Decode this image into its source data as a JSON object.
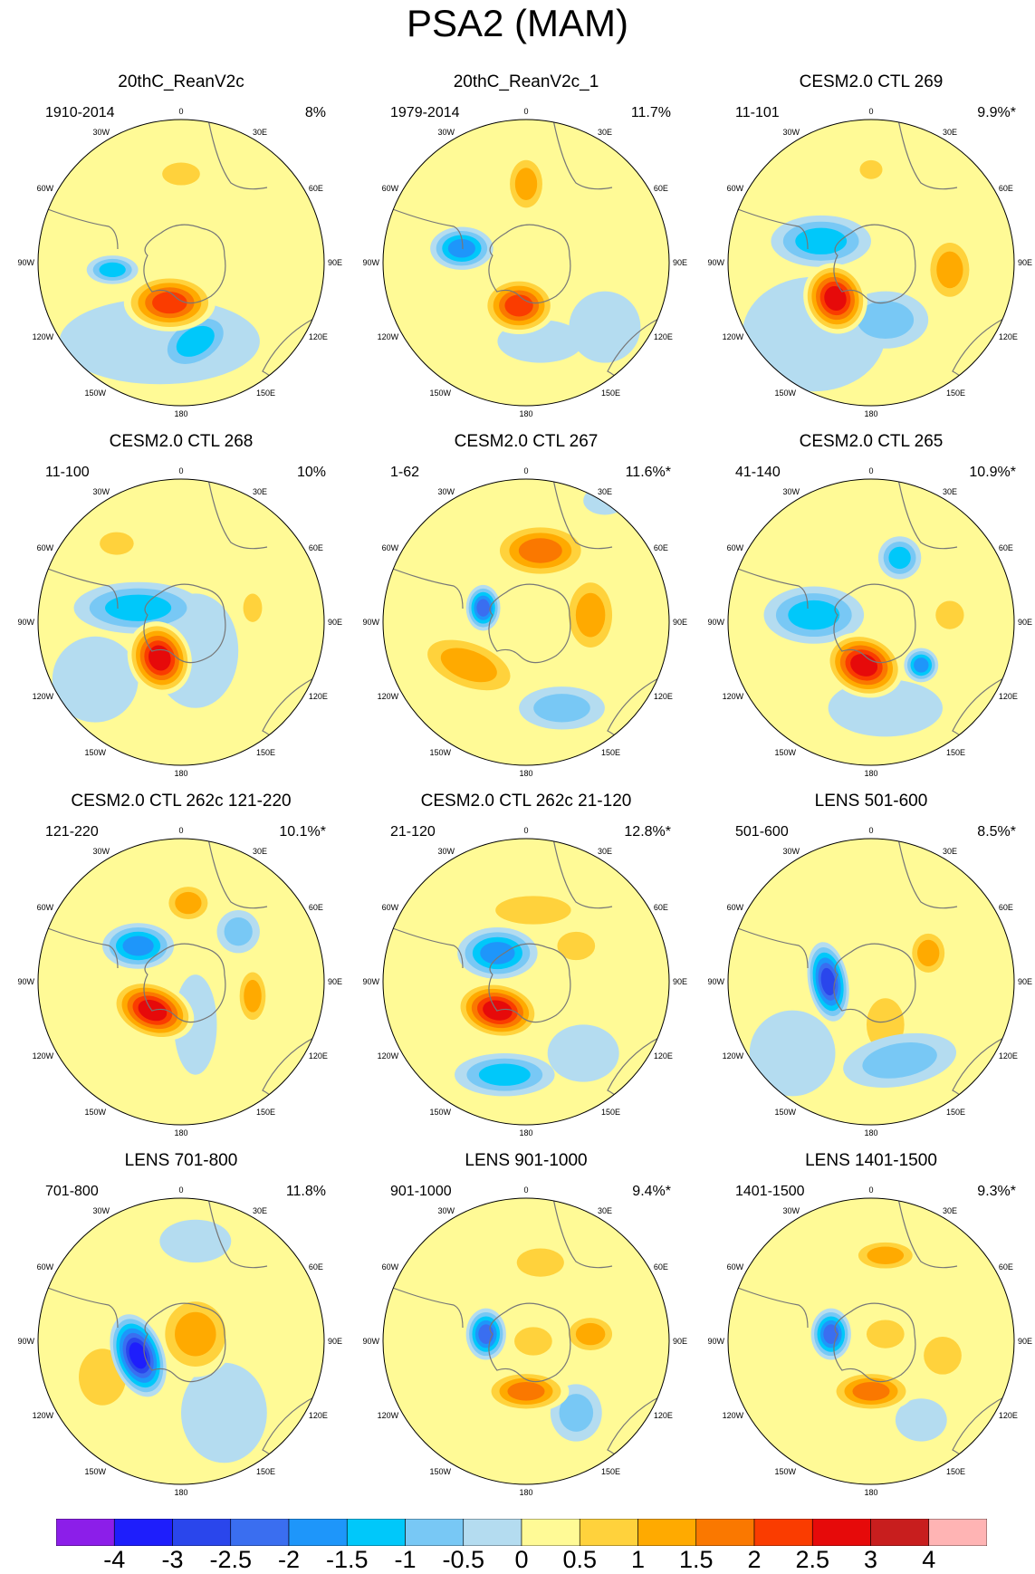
{
  "title": "PSA2 (MAM)",
  "map_labels": {
    "top": "0",
    "bottom": "180",
    "left": "90W",
    "right": "90E",
    "r30e": "30E",
    "r60e": "60E",
    "r120e": "120E",
    "r150e": "150E",
    "l30w": "30W",
    "l60w": "60W",
    "l120w": "120W",
    "l150w": "150W"
  },
  "panels": [
    {
      "title": "20thC_ReanV2c",
      "period": "1910-2014",
      "variance": "8%",
      "blobs": [
        [
          -0.08,
          0.28,
          0.32,
          0.2,
          0,
          2.5
        ],
        [
          0.0,
          -0.62,
          0.2,
          0.12,
          0,
          1
        ],
        [
          -0.48,
          0.05,
          0.18,
          0.1,
          0,
          -1.5
        ],
        [
          0.38,
          0.1,
          0.08,
          0.13,
          0,
          0.5
        ],
        [
          0.1,
          0.55,
          0.28,
          0.18,
          -30,
          -1.5
        ],
        [
          -0.15,
          0.55,
          0.7,
          0.3,
          0,
          -0.5
        ]
      ]
    },
    {
      "title": "20thC_ReanV2c_1",
      "period": "1979-2014",
      "variance": "11.7%",
      "blobs": [
        [
          -0.05,
          0.3,
          0.26,
          0.2,
          0,
          2.5
        ],
        [
          -0.45,
          -0.1,
          0.22,
          0.15,
          0,
          -2
        ],
        [
          0.0,
          -0.55,
          0.15,
          0.22,
          0,
          1.5
        ],
        [
          0.1,
          0.55,
          0.3,
          0.15,
          0,
          -0.5
        ],
        [
          0.55,
          0.45,
          0.25,
          0.25,
          0,
          -0.5
        ],
        [
          0.2,
          0.0,
          0.25,
          0.2,
          0,
          0.5
        ]
      ]
    },
    {
      "title": "CESM2.0 CTL 269",
      "period": "11-101",
      "variance": "9.9%*",
      "blobs": [
        [
          -0.25,
          0.25,
          0.22,
          0.25,
          -20,
          3
        ],
        [
          0.55,
          0.05,
          0.18,
          0.25,
          0,
          1.5
        ],
        [
          0.0,
          -0.65,
          0.12,
          0.1,
          0,
          1
        ],
        [
          -0.35,
          -0.15,
          0.35,
          0.18,
          0,
          -1.5
        ],
        [
          0.1,
          0.4,
          0.3,
          0.2,
          0,
          -1
        ],
        [
          -0.4,
          0.5,
          0.5,
          0.4,
          0,
          -0.5
        ]
      ]
    },
    {
      "title": "CESM2.0 CTL 268",
      "period": "11-100",
      "variance": "10%",
      "blobs": [
        [
          -0.15,
          0.25,
          0.22,
          0.26,
          -20,
          3
        ],
        [
          -0.3,
          -0.1,
          0.45,
          0.18,
          0,
          -1.5
        ],
        [
          -0.45,
          -0.55,
          0.18,
          0.12,
          0,
          1
        ],
        [
          0.5,
          -0.1,
          0.1,
          0.15,
          0,
          1
        ],
        [
          0.1,
          0.2,
          0.3,
          0.4,
          0,
          -0.5
        ],
        [
          -0.6,
          0.4,
          0.3,
          0.3,
          0,
          -0.5
        ]
      ]
    },
    {
      "title": "CESM2.0 CTL 267",
      "period": "1-62",
      "variance": "11.6%*",
      "blobs": [
        [
          -0.3,
          -0.1,
          0.12,
          0.16,
          0,
          -2.5
        ],
        [
          0.1,
          -0.5,
          0.35,
          0.2,
          0,
          2
        ],
        [
          0.45,
          -0.05,
          0.2,
          0.3,
          0,
          1.5
        ],
        [
          -0.4,
          0.3,
          0.4,
          0.2,
          20,
          1.5
        ],
        [
          0.25,
          0.6,
          0.3,
          0.15,
          0,
          -1
        ],
        [
          0.55,
          -0.85,
          0.15,
          0.1,
          0,
          -0.5
        ]
      ]
    },
    {
      "title": "CESM2.0 CTL 265",
      "period": "41-140",
      "variance": "10.9%*",
      "blobs": [
        [
          -0.05,
          0.3,
          0.28,
          0.22,
          20,
          3
        ],
        [
          -0.4,
          -0.05,
          0.35,
          0.2,
          0,
          -1.5
        ],
        [
          0.2,
          -0.45,
          0.15,
          0.15,
          0,
          -1.5
        ],
        [
          0.35,
          0.3,
          0.12,
          0.12,
          0,
          -2
        ],
        [
          0.55,
          -0.05,
          0.15,
          0.15,
          0,
          1
        ],
        [
          -0.3,
          -0.6,
          0.15,
          0.1,
          0,
          0.5
        ],
        [
          0.1,
          0.6,
          0.4,
          0.2,
          0,
          -0.5
        ]
      ]
    },
    {
      "title": "CESM2.0 CTL 262c 121-220",
      "period": "121-220",
      "variance": "10.1%*",
      "blobs": [
        [
          -0.2,
          0.2,
          0.3,
          0.2,
          20,
          3
        ],
        [
          -0.3,
          -0.25,
          0.25,
          0.16,
          0,
          -2
        ],
        [
          0.05,
          -0.55,
          0.18,
          0.15,
          0,
          1.5
        ],
        [
          0.5,
          0.1,
          0.12,
          0.22,
          0,
          1.5
        ],
        [
          0.1,
          0.3,
          0.15,
          0.35,
          0,
          -0.5
        ],
        [
          0.4,
          -0.35,
          0.15,
          0.15,
          0,
          -1
        ]
      ]
    },
    {
      "title": "CESM2.0 CTL 262c 21-120",
      "period": "21-120",
      "variance": "12.8%*",
      "blobs": [
        [
          -0.2,
          0.2,
          0.3,
          0.2,
          10,
          3
        ],
        [
          -0.2,
          -0.2,
          0.28,
          0.18,
          0,
          -2
        ],
        [
          -0.15,
          0.65,
          0.35,
          0.15,
          0,
          -1.5
        ],
        [
          0.05,
          -0.5,
          0.4,
          0.15,
          0,
          1
        ],
        [
          0.35,
          -0.25,
          0.2,
          0.15,
          0,
          1
        ],
        [
          0.4,
          0.5,
          0.25,
          0.2,
          0,
          -0.5
        ]
      ]
    },
    {
      "title": "LENS 501-600",
      "period": "501-600",
      "variance": "8.5%*",
      "blobs": [
        [
          -0.3,
          0.0,
          0.14,
          0.28,
          -10,
          -3
        ],
        [
          0.1,
          0.3,
          0.2,
          0.28,
          0,
          1
        ],
        [
          0.4,
          -0.2,
          0.15,
          0.18,
          0,
          1.5
        ],
        [
          0.2,
          0.55,
          0.4,
          0.18,
          -10,
          -1
        ],
        [
          0.4,
          0.0,
          0.2,
          0.2,
          0,
          0.5
        ],
        [
          -0.55,
          0.5,
          0.3,
          0.3,
          0,
          -0.5
        ]
      ]
    },
    {
      "title": "LENS 701-800",
      "period": "701-800",
      "variance": "11.8%",
      "blobs": [
        [
          -0.3,
          0.1,
          0.18,
          0.3,
          -20,
          -3.5
        ],
        [
          0.1,
          -0.05,
          0.28,
          0.3,
          0,
          1.5
        ],
        [
          -0.55,
          0.25,
          0.25,
          0.3,
          0,
          1
        ],
        [
          0.3,
          0.5,
          0.3,
          0.35,
          0,
          -0.5
        ],
        [
          0.1,
          -0.7,
          0.25,
          0.15,
          0,
          -0.5
        ]
      ]
    },
    {
      "title": "LENS 901-1000",
      "period": "901-1000",
      "variance": "9.4%*",
      "blobs": [
        [
          -0.28,
          -0.05,
          0.14,
          0.18,
          0,
          -2.5
        ],
        [
          0.0,
          0.35,
          0.3,
          0.15,
          0,
          2
        ],
        [
          0.1,
          -0.55,
          0.25,
          0.15,
          0,
          1
        ],
        [
          0.45,
          -0.05,
          0.2,
          0.15,
          0,
          1.5
        ],
        [
          0.35,
          0.5,
          0.18,
          0.2,
          0,
          -1
        ],
        [
          0.05,
          0.0,
          0.2,
          0.15,
          0,
          1
        ]
      ]
    },
    {
      "title": "LENS 1401-1500",
      "period": "1401-1500",
      "variance": "9.3%*",
      "blobs": [
        [
          -0.28,
          -0.05,
          0.14,
          0.18,
          0,
          -2.5
        ],
        [
          0.0,
          0.35,
          0.3,
          0.15,
          0,
          2
        ],
        [
          0.1,
          -0.6,
          0.25,
          0.12,
          0,
          1.5
        ],
        [
          0.5,
          0.1,
          0.2,
          0.2,
          0,
          1
        ],
        [
          0.35,
          0.55,
          0.18,
          0.15,
          0,
          -0.5
        ],
        [
          0.1,
          -0.05,
          0.2,
          0.15,
          0,
          1
        ]
      ]
    }
  ],
  "colorbar": {
    "levels": [
      "-4",
      "-3",
      "-2.5",
      "-2",
      "-1.5",
      "-1",
      "-0.5",
      "0",
      "0.5",
      "1",
      "1.5",
      "2",
      "2.5",
      "3",
      "4"
    ],
    "colors": [
      "#8c1ee9",
      "#1e1efc",
      "#2a46ec",
      "#3a6ef0",
      "#1e96fa",
      "#00c8fa",
      "#78c8f5",
      "#b4dcf0",
      "#fffa96",
      "#ffd23c",
      "#ffaa00",
      "#fa7800",
      "#fa3c00",
      "#e60a0a",
      "#c81e1e",
      "#ffb4b4"
    ]
  }
}
